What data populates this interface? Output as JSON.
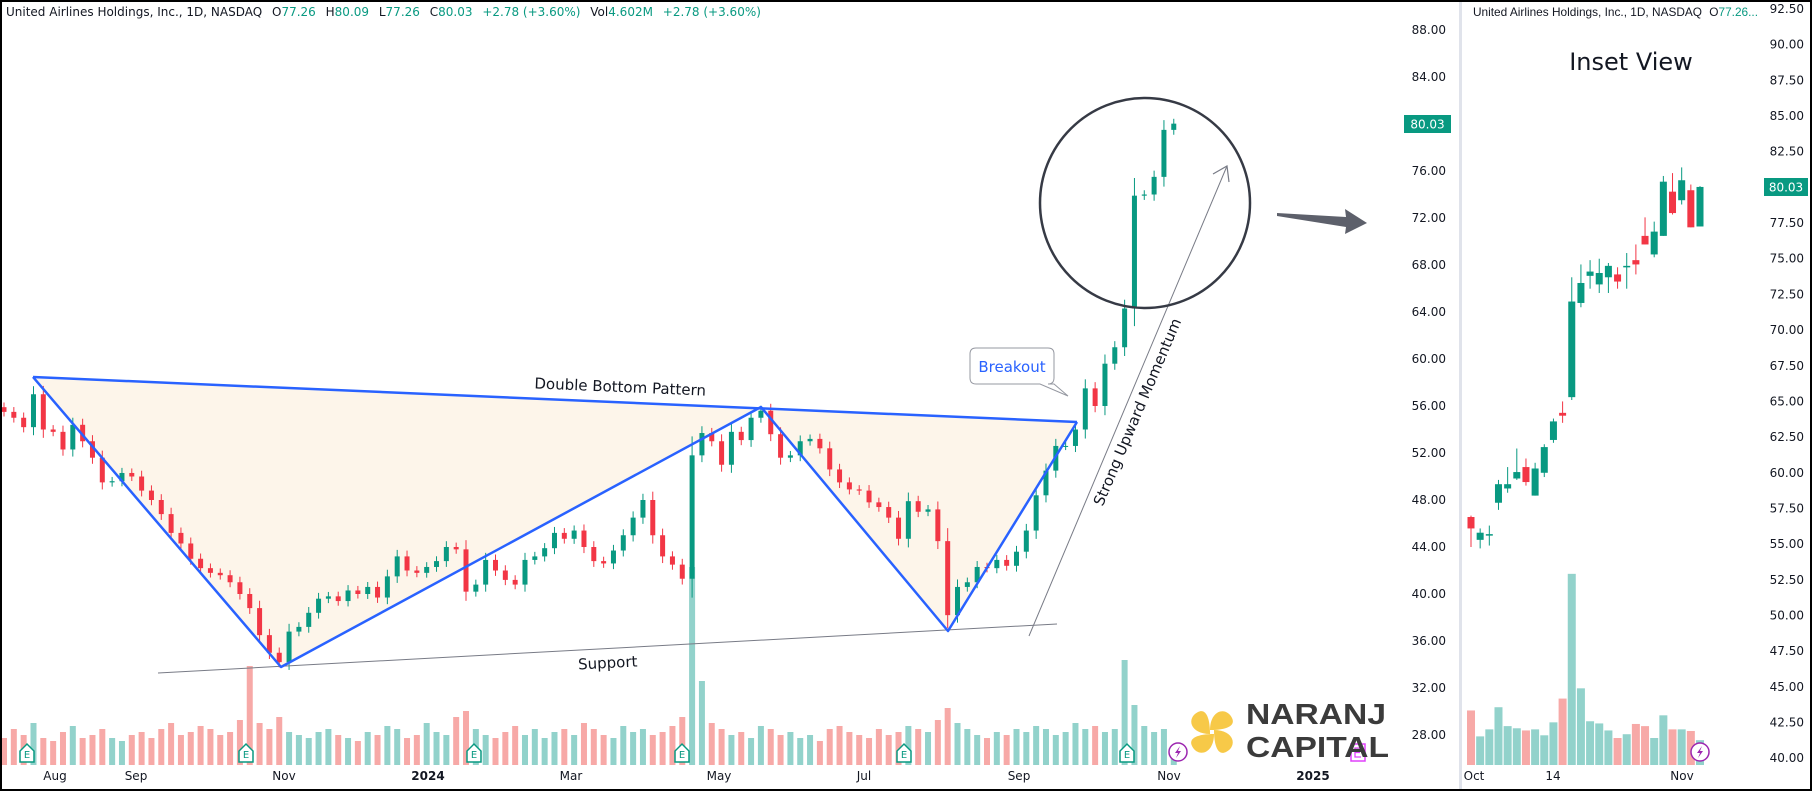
{
  "header": {
    "symbol": "United Airlines Holdings, Inc., 1D, NASDAQ",
    "open_label": "O",
    "open": "77.26",
    "high_label": "H",
    "high": "80.09",
    "low_label": "L",
    "low": "77.26",
    "close_label": "C",
    "close": "80.03",
    "change": "+2.78 (+3.60%)",
    "vol_label": "Vol",
    "volume": "4.602M",
    "vol_change": "+2.78 (+3.60%)"
  },
  "inset": {
    "header_symbol": "United Airlines Holdings, Inc., 1D, NASDAQ",
    "header_open_label": "O",
    "header_open_truncated": "77.26...",
    "title": "Inset View"
  },
  "annotations": {
    "pattern_label": "Double Bottom Pattern",
    "support_label": "Support",
    "breakout_label": "Breakout",
    "momentum_label": "Strong Upward Momentum"
  },
  "markers": {
    "earnings_label": "E",
    "earnings_icon": "earnings-flag-icon",
    "dividend_icon": "lightning-icon"
  },
  "logo": {
    "line1": "NARANJ",
    "line2": "CAPITAL"
  },
  "colors": {
    "up": "#089981",
    "down": "#f23645",
    "volume_up": "#92d2cb",
    "volume_down": "#f7a9a7",
    "pattern_line": "#2962ff",
    "pattern_fill": "#fdf5ea",
    "logo_yellow": "#f7c948",
    "logo_text": "#3b3b3b",
    "future_earnings": "#e040fb",
    "lightning": "#9c27b0"
  },
  "chart_data": [
    {
      "type": "candlestick",
      "title": "United Airlines Holdings, Inc., 1D, NASDAQ",
      "ylim": [
        26,
        90
      ],
      "last_price": "80.03",
      "y_ticks": [
        "88.00",
        "84.00",
        "76.00",
        "72.00",
        "68.00",
        "64.00",
        "60.00",
        "56.00",
        "52.00",
        "48.00",
        "44.00",
        "40.00",
        "36.00",
        "32.00",
        "28.00"
      ],
      "x_ticks": [
        "Aug",
        "Sep",
        "Nov",
        "2024",
        "Mar",
        "May",
        "Jul",
        "Sep",
        "Nov",
        "2025"
      ],
      "grid": false,
      "closes": [
        55.5,
        55.0,
        54.2,
        57.0,
        54.0,
        53.8,
        52.3,
        54.4,
        53.0,
        51.6,
        49.5,
        49.6,
        50.3,
        50.0,
        48.8,
        48.0,
        46.8,
        45.2,
        44.3,
        43.0,
        42.2,
        41.8,
        41.6,
        41.0,
        40.0,
        38.8,
        36.5,
        35.0,
        34.2,
        36.8,
        37.2,
        38.4,
        39.6,
        39.8,
        39.4,
        40.3,
        40.0,
        40.6,
        39.7,
        41.5,
        43.2,
        42.0,
        41.8,
        42.3,
        42.8,
        44.0,
        43.8,
        40.2,
        40.8,
        42.9,
        42.0,
        41.2,
        40.8,
        42.9,
        43.2,
        43.9,
        45.2,
        44.7,
        45.4,
        44.0,
        42.8,
        42.6,
        43.7,
        45.0,
        46.5,
        48.0,
        45.0,
        43.2,
        42.5,
        41.3,
        51.8,
        53.7,
        53.0,
        51.0,
        53.8,
        53.1,
        55.0,
        55.6,
        53.6,
        51.6,
        51.8,
        53.0,
        53.2,
        52.4,
        50.6,
        49.5,
        48.9,
        48.8,
        47.8,
        47.4,
        46.5,
        44.7,
        47.9,
        47.0,
        47.2,
        44.5,
        38.2,
        40.6,
        41.0,
        42.3,
        42.2,
        42.9,
        42.4,
        43.6,
        45.4,
        48.4,
        50.5,
        52.6,
        52.6,
        54.0,
        57.5,
        56.0,
        59.6,
        61.0,
        64.3,
        73.9,
        74.0,
        75.5,
        79.5,
        80.03
      ],
      "volume_millions": [
        9,
        12,
        10,
        14,
        9,
        8,
        11,
        13,
        9,
        10,
        12,
        9,
        8,
        10,
        11,
        9,
        12,
        14,
        10,
        11,
        13,
        12,
        10,
        11,
        15,
        33,
        14,
        12,
        16,
        11,
        10,
        9,
        11,
        12,
        10,
        9,
        8,
        11,
        10,
        13,
        12,
        9,
        10,
        14,
        11,
        10,
        16,
        18,
        12,
        10,
        9,
        11,
        13,
        10,
        12,
        9,
        11,
        12,
        10,
        14,
        12,
        10,
        9,
        13,
        11,
        12,
        10,
        11,
        13,
        16,
        66,
        28,
        14,
        12,
        10,
        11,
        9,
        13,
        12,
        10,
        11,
        9,
        10,
        8,
        12,
        13,
        11,
        10,
        9,
        12,
        10,
        11,
        13,
        12,
        11,
        15,
        19,
        14,
        12,
        10,
        9,
        11,
        10,
        12,
        11,
        13,
        12,
        10,
        11,
        14,
        12,
        13,
        11,
        12,
        35,
        20,
        13,
        11,
        12,
        4.6
      ]
    },
    {
      "type": "candlestick",
      "title": "Inset View",
      "ylim": [
        39,
        93
      ],
      "last_price": "80.03",
      "y_ticks": [
        "92.50",
        "90.00",
        "87.50",
        "85.00",
        "82.50",
        "77.50",
        "75.00",
        "72.50",
        "70.00",
        "67.50",
        "65.00",
        "62.50",
        "60.00",
        "57.50",
        "55.00",
        "52.50",
        "50.00",
        "47.50",
        "45.00",
        "42.50",
        "40.00"
      ],
      "x_ticks": [
        "Oct",
        "14",
        "Nov"
      ],
      "grid": false,
      "ohlc": [
        [
          56.9,
          57.0,
          54.8,
          56.1
        ],
        [
          55.3,
          56.1,
          54.7,
          55.8
        ],
        [
          55.6,
          56.3,
          54.9,
          55.7
        ],
        [
          57.9,
          59.5,
          57.4,
          59.2
        ],
        [
          58.9,
          60.4,
          58.6,
          59.2
        ],
        [
          59.6,
          61.7,
          59.5,
          60.05
        ],
        [
          60.4,
          61.0,
          59.1,
          59.35
        ],
        [
          58.4,
          60.7,
          58.4,
          60.3
        ],
        [
          60.0,
          62.0,
          59.7,
          61.8
        ],
        [
          62.3,
          63.8,
          62.1,
          63.6
        ],
        [
          64.2,
          65.0,
          63.5,
          64.0
        ],
        [
          65.3,
          73.7,
          65.1,
          72.0
        ],
        [
          71.9,
          74.6,
          71.6,
          73.3
        ],
        [
          73.8,
          74.9,
          72.9,
          74.1
        ],
        [
          73.2,
          75.0,
          72.6,
          74.0
        ],
        [
          73.7,
          74.7,
          72.6,
          74.5
        ],
        [
          73.9,
          74.4,
          72.9,
          73.4
        ],
        [
          74.4,
          75.4,
          72.9,
          74.5
        ],
        [
          74.9,
          76.0,
          73.9,
          74.6
        ],
        [
          76.6,
          77.9,
          76.0,
          76.0
        ],
        [
          75.3,
          77.6,
          75.1,
          76.9
        ],
        [
          76.6,
          80.8,
          76.6,
          80.4
        ],
        [
          79.7,
          81.0,
          78.1,
          78.2
        ],
        [
          79.1,
          81.4,
          78.8,
          80.5
        ],
        [
          79.8,
          80.2,
          77.2,
          77.2
        ],
        [
          77.26,
          80.09,
          77.26,
          80.03
        ]
      ],
      "volume_millions": [
        10.1,
        5.3,
        6.6,
        10.7,
        7.2,
        6.8,
        6.4,
        6.6,
        5.5,
        7.9,
        12.3,
        35.4,
        14.2,
        8.1,
        7.7,
        6.4,
        5.0,
        5.7,
        7.6,
        7.2,
        5.0,
        9.2,
        6.6,
        6.6,
        6.3,
        4.6
      ]
    }
  ]
}
